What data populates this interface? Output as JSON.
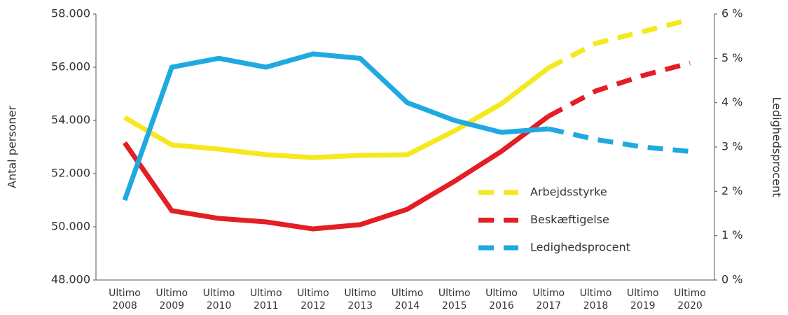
{
  "chart_data": {
    "type": "line",
    "categories": [
      "Ultimo 2008",
      "Ultimo 2009",
      "Ultimo 2010",
      "Ultimo 2011",
      "Ultimo 2012",
      "Ultimo 2013",
      "Ultimo 2014",
      "Ultimo 2015",
      "Ultimo 2016",
      "Ultimo 2017",
      "Ultimo 2018",
      "Ultimo 2019",
      "Ultimo 2020"
    ],
    "ylabel": "Antal personer",
    "y2label": "Ledighedsprocent",
    "ylim": [
      48000,
      58000
    ],
    "yticks": [
      {
        "value": 48000,
        "label": "48.000"
      },
      {
        "value": 50000,
        "label": "50.000"
      },
      {
        "value": 52000,
        "label": "52.000"
      },
      {
        "value": 54000,
        "label": "54.000"
      },
      {
        "value": 56000,
        "label": "56.000"
      },
      {
        "value": 58000,
        "label": "58.000"
      }
    ],
    "y2lim": [
      0,
      6
    ],
    "y2ticks": [
      {
        "value": 0,
        "label": "0 %"
      },
      {
        "value": 1,
        "label": "1 %"
      },
      {
        "value": 2,
        "label": "2 %"
      },
      {
        "value": 3,
        "label": "3 %"
      },
      {
        "value": 4,
        "label": "4 %"
      },
      {
        "value": 5,
        "label": "5 %"
      },
      {
        "value": 6,
        "label": "6 %"
      }
    ],
    "dash_from": 9,
    "legend": "lower right",
    "series": [
      {
        "name": "Arbejdsstyrke",
        "color": "#f5e81c",
        "values": [
          54105,
          53080,
          52920,
          52710,
          52605,
          52685,
          52710,
          53605,
          54630,
          55975,
          56895,
          57340,
          57790
        ]
      },
      {
        "name": "Beskæftigelse",
        "color": "#e31e24",
        "values": [
          53160,
          50605,
          50315,
          50185,
          49920,
          50080,
          50660,
          51710,
          52840,
          54160,
          55105,
          55685,
          56160
        ]
      },
      {
        "name": "Ledighedsprocent",
        "color": "#1fa9e1",
        "axis": "y2",
        "values": [
          1.8,
          4.8,
          5.0,
          4.8,
          5.1,
          5.0,
          4.0,
          3.6,
          3.33,
          3.41,
          3.17,
          3.0,
          2.9
        ]
      }
    ]
  }
}
